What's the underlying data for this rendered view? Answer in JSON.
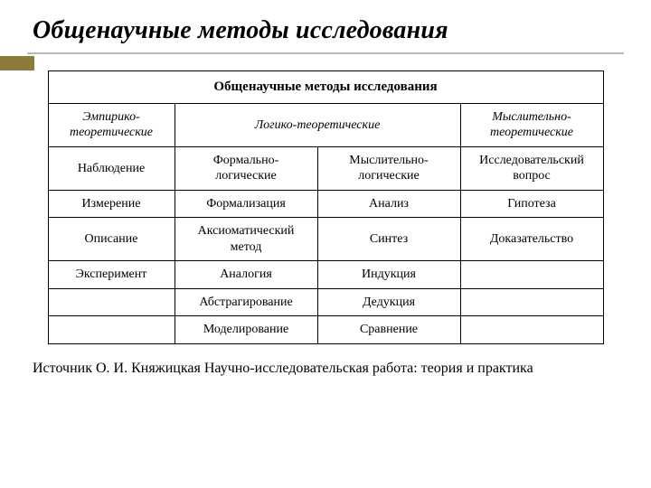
{
  "title": "Общенаучные методы исследования",
  "colors": {
    "accent": "#8e7a3a",
    "underline": "#b9b9b9",
    "border": "#000000",
    "text": "#000000",
    "background": "#ffffff"
  },
  "table": {
    "header_main": "Общенаучные методы исследования",
    "columns": {
      "col1_line1": "Эмпирико-",
      "col1_line2": "теоретические",
      "col23": "Логико-теоретические",
      "col4_line1": "Мыслительно-",
      "col4_line2": "теоретические"
    },
    "rows": [
      {
        "c1": "Наблюдение",
        "c2_line1": "Формально-",
        "c2_line2": "логические",
        "c3_line1": "Мыслительно-",
        "c3_line2": "логические",
        "c4_line1": "Исследовательский",
        "c4_line2": "вопрос"
      },
      {
        "c1": "Измерение",
        "c2": "Формализация",
        "c3": "Анализ",
        "c4": "Гипотеза"
      },
      {
        "c1": "Описание",
        "c2_line1": "Аксиоматический",
        "c2_line2": "метод",
        "c3": "Синтез",
        "c4": "Доказательство"
      },
      {
        "c1": "Эксперимент",
        "c2": "Аналогия",
        "c3": "Индукция",
        "c4": ""
      },
      {
        "c1": "",
        "c2": "Абстрагирование",
        "c3": "Дедукция",
        "c4": ""
      },
      {
        "c1": "",
        "c2": "Моделирование",
        "c3": "Сравнение",
        "c4": ""
      }
    ]
  },
  "source": "Источник О. И. Княжицкая Научно-исследовательская работа:  теория и практика"
}
